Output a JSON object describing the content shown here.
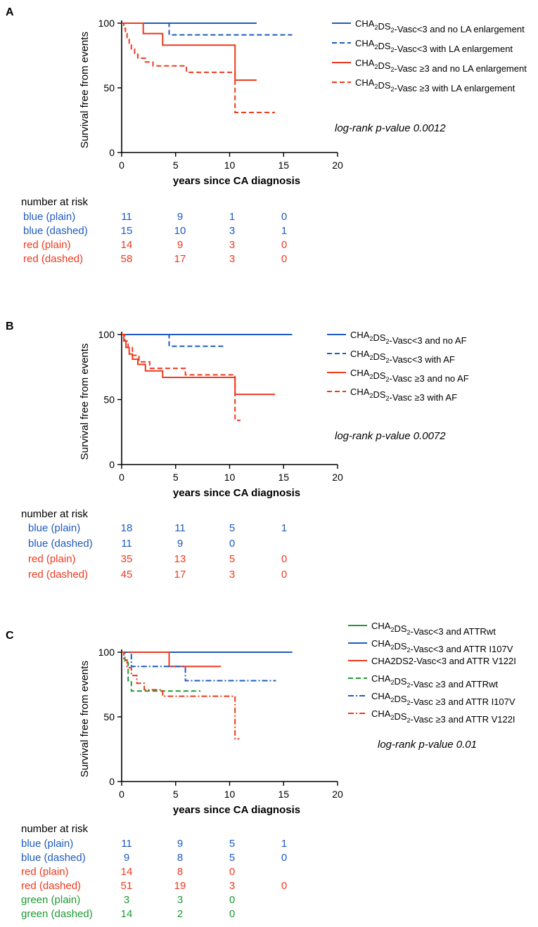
{
  "colors": {
    "blue": "#1f5bbf",
    "red": "#ee3a1e",
    "green": "#1e9a33",
    "axis": "#000000"
  },
  "panels": [
    {
      "letter": "A",
      "ylabel": "Survival free from events",
      "xlabel": "years since CA diagnosis",
      "x_ticks": [
        "0",
        "5",
        "10",
        "15",
        "20"
      ],
      "y_ticks": [
        "0",
        "50",
        "100"
      ],
      "pvalue": "log-rank p-value 0.0012",
      "legend": [
        {
          "base": "CHA",
          "sub1": "2",
          "mid": "DS",
          "sub2": "2",
          "rest": "-Vasc<3 and no LA enlargement"
        },
        {
          "base": "CHA",
          "sub1": "2",
          "mid": "DS",
          "sub2": "2",
          "rest": "-Vasc<3 with LA enlargement"
        },
        {
          "base": "CHA",
          "sub1": "2",
          "mid": "DS",
          "sub2": "2",
          "rest": "-Vasc ≥3 and no LA enlargement"
        },
        {
          "base": "CHA",
          "sub1": "2",
          "mid": "DS",
          "sub2": "2",
          "rest": "-Vasc ≥3 with LA enlargement"
        }
      ],
      "risk_title": "number at risk",
      "risk_rows": [
        {
          "label": "blue  (plain)",
          "values": [
            "11",
            "9",
            "1",
            "0"
          ]
        },
        {
          "label": "blue (dashed)",
          "values": [
            "15",
            "10",
            "3",
            "1"
          ]
        },
        {
          "label": "red (plain)",
          "values": [
            "14",
            "9",
            "3",
            "0"
          ]
        },
        {
          "label": "red (dashed)",
          "values": [
            "58",
            "17",
            "3",
            "0"
          ]
        }
      ]
    },
    {
      "letter": "B",
      "ylabel": "Survival free from events",
      "xlabel": "years since CA diagnosis",
      "x_ticks": [
        "0",
        "5",
        "10",
        "15",
        "20"
      ],
      "y_ticks": [
        "0",
        "50",
        "100"
      ],
      "pvalue": "log-rank p-value 0.0072",
      "legend": [
        {
          "base": "CHA",
          "sub1": "2",
          "mid": "DS",
          "sub2": "2",
          "rest": "-Vasc<3 and no AF"
        },
        {
          "base": "CHA",
          "sub1": "2",
          "mid": "DS",
          "sub2": "2",
          "rest": "-Vasc<3 with AF"
        },
        {
          "base": "CHA",
          "sub1": "2",
          "mid": "DS",
          "sub2": "2",
          "rest": "-Vasc ≥3 and no AF"
        },
        {
          "base": "CHA",
          "sub1": "2",
          "mid": "DS",
          "sub2": "2",
          "rest": "-Vasc ≥3 with AF"
        }
      ],
      "risk_title": "number at risk",
      "risk_rows": [
        {
          "label": "blue  (plain)",
          "values": [
            "18",
            "11",
            "5",
            "1"
          ]
        },
        {
          "label": "blue (dashed)",
          "values": [
            "11",
            "9",
            "0",
            ""
          ]
        },
        {
          "label": "red (plain)",
          "values": [
            "35",
            "13",
            "5",
            "0"
          ]
        },
        {
          "label": "red (dashed)",
          "values": [
            "45",
            "17",
            "3",
            "0"
          ]
        }
      ]
    },
    {
      "letter": "C",
      "ylabel": "Survival free from events",
      "xlabel": "years since CA diagnosis",
      "x_ticks": [
        "0",
        "5",
        "10",
        "15",
        "20"
      ],
      "y_ticks": [
        "0",
        "50",
        "100"
      ],
      "pvalue": "log-rank p-value 0.01",
      "legend": [
        {
          "base": "CHA",
          "sub1": "2",
          "mid": "DS",
          "sub2": "2",
          "rest": "-Vasc<3 and ATTRwt"
        },
        {
          "base": "CHA",
          "sub1": "2",
          "mid": "DS",
          "sub2": "2",
          "rest": "-Vasc<3 and ATTR I107V"
        },
        {
          "base": "CHA2DS2-Vasc<3 and ATTR V122I",
          "sub1": "",
          "mid": "",
          "sub2": "",
          "rest": ""
        },
        {
          "base": "CHA",
          "sub1": "2",
          "mid": "DS",
          "sub2": "2",
          "rest": "-Vasc ≥3 and ATTRwt"
        },
        {
          "base": "CHA",
          "sub1": "2",
          "mid": "DS",
          "sub2": "2",
          "rest": "-Vasc ≥3 and ATTR I107V"
        },
        {
          "base": "CHA",
          "sub1": "2",
          "mid": "DS",
          "sub2": "2",
          "rest": "-Vasc ≥3 and ATTR V122I"
        }
      ],
      "risk_title": "number at risk",
      "risk_rows": [
        {
          "label": "blue  (plain)",
          "values": [
            "11",
            "9",
            "5",
            "1"
          ]
        },
        {
          "label": "blue (dashed)",
          "values": [
            "9",
            "8",
            "5",
            "0"
          ]
        },
        {
          "label": "red (plain)",
          "values": [
            "14",
            "8",
            "0",
            ""
          ]
        },
        {
          "label": "red (dashed)",
          "values": [
            "51",
            "19",
            "3",
            "0"
          ]
        },
        {
          "label": "green (plain)",
          "values": [
            "3",
            "3",
            "0",
            ""
          ]
        },
        {
          "label": "green (dashed)",
          "values": [
            "14",
            "2",
            "0",
            ""
          ]
        }
      ]
    }
  ],
  "chart_data": [
    {
      "type": "line",
      "title": "A",
      "xlabel": "years since CA diagnosis",
      "ylabel": "Survival free from events",
      "xlim": [
        0,
        20
      ],
      "ylim": [
        0,
        100
      ],
      "series": [
        {
          "name": "CHA2DS2-Vasc<3 and no LA enlargement",
          "color": "blue",
          "dash": "solid",
          "x": [
            0,
            12.5
          ],
          "y": [
            100,
            100
          ]
        },
        {
          "name": "CHA2DS2-Vasc<3 with LA enlargement",
          "color": "blue",
          "dash": "dashed",
          "x": [
            0,
            4.4,
            4.4,
            15.8
          ],
          "y": [
            100,
            100,
            91,
            91
          ]
        },
        {
          "name": "CHA2DS2-Vasc ≥3 and no LA enlargement",
          "color": "red",
          "dash": "solid",
          "x": [
            0,
            2,
            2,
            3.8,
            3.8,
            10.5,
            10.5,
            12.5
          ],
          "y": [
            100,
            100,
            92,
            92,
            83,
            83,
            56,
            56
          ]
        },
        {
          "name": "CHA2DS2-Vasc ≥3 with LA enlargement",
          "color": "red",
          "dash": "dashed",
          "x": [
            0,
            0.2,
            0.2,
            0.35,
            0.35,
            0.5,
            0.5,
            0.7,
            0.7,
            0.9,
            0.9,
            1.2,
            1.2,
            1.5,
            1.5,
            2.2,
            2.2,
            2.9,
            2.9,
            6,
            6,
            10.5,
            10.5,
            14.2
          ],
          "y": [
            100,
            100,
            96,
            96,
            92,
            92,
            88,
            88,
            84,
            84,
            80,
            80,
            76,
            76,
            73,
            73,
            70,
            70,
            67,
            67,
            62,
            62,
            31,
            31
          ]
        }
      ]
    },
    {
      "type": "line",
      "title": "B",
      "xlabel": "years since CA diagnosis",
      "ylabel": "Survival free from events",
      "xlim": [
        0,
        20
      ],
      "ylim": [
        0,
        100
      ],
      "series": [
        {
          "name": "CHA2DS2-Vasc<3 and no AF",
          "color": "blue",
          "dash": "solid",
          "x": [
            0,
            15.8
          ],
          "y": [
            100,
            100
          ]
        },
        {
          "name": "CHA2DS2-Vasc<3 with AF",
          "color": "blue",
          "dash": "dashed",
          "x": [
            0,
            4.4,
            4.4,
            9.5
          ],
          "y": [
            100,
            100,
            91,
            91
          ]
        },
        {
          "name": "CHA2DS2-Vasc ≥3 and no AF",
          "color": "red",
          "dash": "solid",
          "x": [
            0,
            0.2,
            0.2,
            0.4,
            0.4,
            0.7,
            0.7,
            1.0,
            1.0,
            1.5,
            1.5,
            2.2,
            2.2,
            3.8,
            3.8,
            10.5,
            10.5,
            14.2
          ],
          "y": [
            100,
            100,
            95,
            95,
            90,
            90,
            85,
            85,
            81,
            81,
            77,
            77,
            72,
            72,
            67,
            67,
            54,
            54
          ]
        },
        {
          "name": "CHA2DS2-Vasc ≥3 with AF",
          "color": "red",
          "dash": "dashed",
          "x": [
            0,
            0.3,
            0.3,
            0.6,
            0.6,
            1.0,
            1.0,
            1.6,
            1.6,
            2.6,
            2.6,
            5.9,
            5.9,
            10.5,
            10.5,
            11.0
          ],
          "y": [
            100,
            100,
            95,
            95,
            90,
            90,
            84,
            84,
            79,
            79,
            74,
            74,
            69,
            69,
            34,
            34
          ]
        }
      ]
    },
    {
      "type": "line",
      "title": "C",
      "xlabel": "years since CA diagnosis",
      "ylabel": "Survival free from events",
      "xlim": [
        0,
        20
      ],
      "ylim": [
        0,
        100
      ],
      "series": [
        {
          "name": "CHA2DS2-Vasc<3 and ATTRwt",
          "color": "green",
          "dash": "solid",
          "x": [
            0,
            8.0
          ],
          "y": [
            100,
            100
          ]
        },
        {
          "name": "CHA2DS2-Vasc<3 and ATTR I107V",
          "color": "blue",
          "dash": "solid",
          "x": [
            0,
            15.8
          ],
          "y": [
            100,
            100
          ]
        },
        {
          "name": "CHA2DS2-Vasc<3 and ATTR V122I",
          "color": "red",
          "dash": "solid",
          "x": [
            0,
            4.4,
            4.4,
            9.2
          ],
          "y": [
            100,
            100,
            89,
            89
          ]
        },
        {
          "name": "CHA2DS2-Vasc ≥3 and ATTRwt",
          "color": "green",
          "dash": "dashed",
          "x": [
            0,
            0.3,
            0.3,
            0.6,
            0.6,
            0.9,
            0.9,
            7.3
          ],
          "y": [
            100,
            100,
            92,
            92,
            78,
            78,
            70,
            70
          ]
        },
        {
          "name": "CHA2DS2-Vasc ≥3 and ATTR I107V",
          "color": "blue",
          "dash": "dashdot",
          "x": [
            0,
            0.9,
            0.9,
            5.9,
            5.9,
            14.3
          ],
          "y": [
            100,
            100,
            89,
            89,
            78,
            78
          ]
        },
        {
          "name": "CHA2DS2-Vasc ≥3 and ATTR V122I",
          "color": "red",
          "dash": "dashdot",
          "x": [
            0,
            0.2,
            0.2,
            0.5,
            0.5,
            0.9,
            0.9,
            1.4,
            1.4,
            2.1,
            2.1,
            3.8,
            3.8,
            10.5,
            10.5,
            10.9
          ],
          "y": [
            100,
            100,
            94,
            94,
            88,
            88,
            82,
            82,
            76,
            76,
            71,
            71,
            66,
            66,
            33,
            33
          ]
        }
      ]
    }
  ]
}
